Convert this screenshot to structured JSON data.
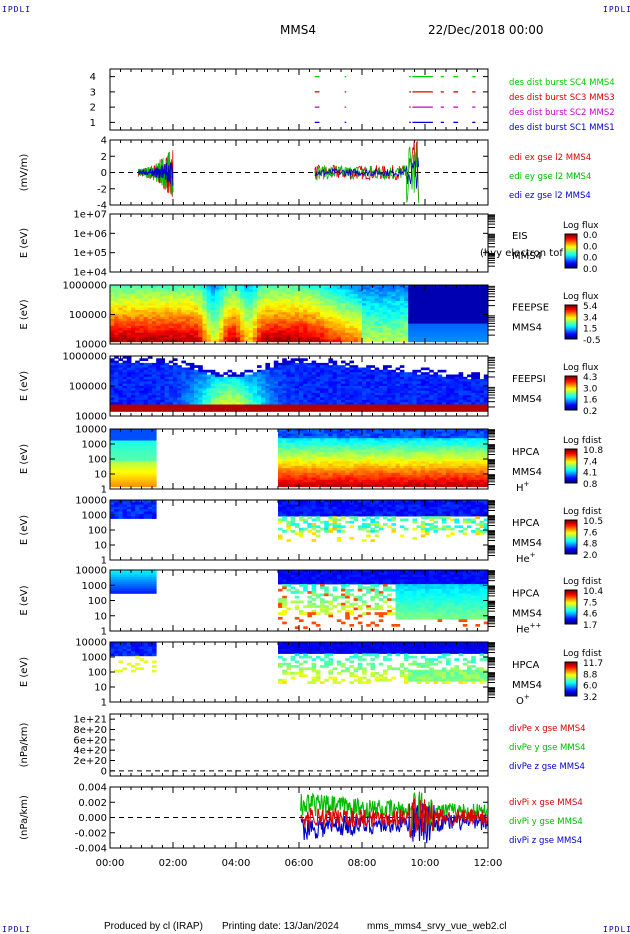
{
  "corner_tag": "IPDLI",
  "title": "MMS4",
  "date": "22/Dec/2018 00:00",
  "footer": {
    "produced": "Produced by cl (IRAP)",
    "printing": "Printing date: 13/Jan/2024",
    "file": "mms_mms4_srvy_vue_web2.cl"
  },
  "time_axis": {
    "ticks": [
      "00:00",
      "02:00",
      "04:00",
      "06:00",
      "08:00",
      "10:00",
      "12:00"
    ],
    "range_hours": [
      0,
      12
    ]
  },
  "chart_data": [
    {
      "type": "line",
      "id": "burst",
      "ylabel": "",
      "ylim": [
        0.5,
        4.5
      ],
      "yticks": [
        "1",
        "2",
        "3",
        "4"
      ],
      "series": [
        {
          "name": "des dist burst SC1 MMS1",
          "color": "#0000cc",
          "level": 1
        },
        {
          "name": "des dist burst SC2 MMS2",
          "color": "#cc00cc",
          "level": 2
        },
        {
          "name": "des dist burst SC3 MMS3",
          "color": "#dd0000",
          "level": 3
        },
        {
          "name": "des dist burst SC4 MMS4",
          "color": "#00cc00",
          "level": 4
        }
      ],
      "intervals_hours": [
        [
          6.5,
          6.65
        ],
        [
          7.45,
          7.5
        ],
        [
          9.5,
          9.55
        ],
        [
          9.6,
          10.25
        ],
        [
          10.5,
          10.6
        ],
        [
          10.9,
          11.05
        ],
        [
          11.5,
          11.6
        ]
      ]
    },
    {
      "type": "line",
      "id": "edi",
      "ylabel": "(mV/m)",
      "ylim": [
        -4,
        4
      ],
      "yticks": [
        "4",
        "2",
        "0",
        "-2",
        "-4"
      ],
      "series": [
        {
          "name": "edi ex gse l2 MMS4",
          "color": "#dd0000"
        },
        {
          "name": "edi ey gse l2 MMS4",
          "color": "#00bb00"
        },
        {
          "name": "edi ez gse l2 MMS4",
          "color": "#0000cc"
        }
      ],
      "active_hours": [
        [
          0.9,
          2.0
        ],
        [
          6.5,
          9.8
        ]
      ]
    },
    {
      "type": "heatmap",
      "id": "eis",
      "ylabel": "E (eV)",
      "yticks": [
        "1e+07",
        "1e+06",
        "1e+05",
        "1e+04"
      ],
      "right_labels": [
        "EIS",
        "MMS4"
      ],
      "overlap_label": "(hvy electron tof",
      "colorbar": {
        "label": "Log flux",
        "ticks": [
          "0.0",
          "0.0",
          "0.0",
          "0.0"
        ]
      }
    },
    {
      "type": "heatmap",
      "id": "feepse",
      "ylabel": "E (eV)",
      "yticks": [
        "1000000",
        "100000",
        "10000"
      ],
      "right_labels": [
        "FEEPSE",
        "MMS4"
      ],
      "colorbar": {
        "label": "Log flux",
        "ticks": [
          "5.4",
          "3.4",
          "1.5",
          "-0.5"
        ]
      }
    },
    {
      "type": "heatmap",
      "id": "feepsi",
      "ylabel": "E (eV)",
      "yticks": [
        "1000000",
        "100000",
        "10000"
      ],
      "right_labels": [
        "FEEPSI",
        "MMS4"
      ],
      "colorbar": {
        "label": "Log flux",
        "ticks": [
          "4.3",
          "3.0",
          "1.6",
          "0.2"
        ]
      }
    },
    {
      "type": "heatmap",
      "id": "hpca_h",
      "ylabel": "E (eV)",
      "yticks": [
        "10000",
        "1000",
        "100",
        "10",
        "1"
      ],
      "right_labels": [
        "HPCA",
        "MMS4"
      ],
      "species": {
        "base": "H",
        "sup": "+"
      },
      "colorbar": {
        "label": "Log fdist",
        "ticks": [
          "10.8",
          "7.4",
          "4.1",
          "0.8"
        ]
      }
    },
    {
      "type": "heatmap",
      "id": "hpca_he",
      "ylabel": "E (eV)",
      "yticks": [
        "10000",
        "1000",
        "100",
        "10",
        "1"
      ],
      "right_labels": [
        "HPCA",
        "MMS4"
      ],
      "species": {
        "base": "He",
        "sup": "+"
      },
      "colorbar": {
        "label": "Log fdist",
        "ticks": [
          "10.5",
          "7.6",
          "4.8",
          "2.0"
        ]
      }
    },
    {
      "type": "heatmap",
      "id": "hpca_hepp",
      "ylabel": "E (eV)",
      "yticks": [
        "10000",
        "1000",
        "100",
        "10",
        "1"
      ],
      "right_labels": [
        "HPCA",
        "MMS4"
      ],
      "species": {
        "base": "He",
        "sup": "++"
      },
      "colorbar": {
        "label": "Log fdist",
        "ticks": [
          "10.4",
          "7.5",
          "4.6",
          "1.7"
        ]
      }
    },
    {
      "type": "heatmap",
      "id": "hpca_o",
      "ylabel": "E (eV)",
      "yticks": [
        "10000",
        "1000",
        "100",
        "10",
        "1"
      ],
      "right_labels": [
        "HPCA",
        "MMS4"
      ],
      "species": {
        "base": "O",
        "sup": "+"
      },
      "colorbar": {
        "label": "Log fdist",
        "ticks": [
          "11.7",
          "8.8",
          "6.0",
          "3.2"
        ]
      }
    },
    {
      "type": "line",
      "id": "divpe",
      "ylabel": "(nPa/km)",
      "ylim": [
        -1e+20,
        1.1e+21
      ],
      "yticks": [
        "1e+21",
        "8e+20",
        "6e+20",
        "4e+20",
        "2e+20",
        "0"
      ],
      "series": [
        {
          "name": "divPe x gse MMS4",
          "color": "#dd0000"
        },
        {
          "name": "divPe y gse MMS4",
          "color": "#00bb00"
        },
        {
          "name": "divPe z gse MMS4",
          "color": "#0000cc"
        }
      ]
    },
    {
      "type": "line",
      "id": "divpi",
      "ylabel": "(nPa/km)",
      "ylim": [
        -0.005,
        0.005
      ],
      "yticks": [
        "0.004",
        "0.002",
        "0.000",
        "-0.002",
        "-0.004"
      ],
      "series": [
        {
          "name": "divPi x gse MMS4",
          "color": "#dd0000"
        },
        {
          "name": "divPi y gse MMS4",
          "color": "#00bb00"
        },
        {
          "name": "divPi z gse MMS4",
          "color": "#0000cc"
        }
      ],
      "active_hours": [
        [
          6.05,
          12.0
        ]
      ]
    }
  ]
}
